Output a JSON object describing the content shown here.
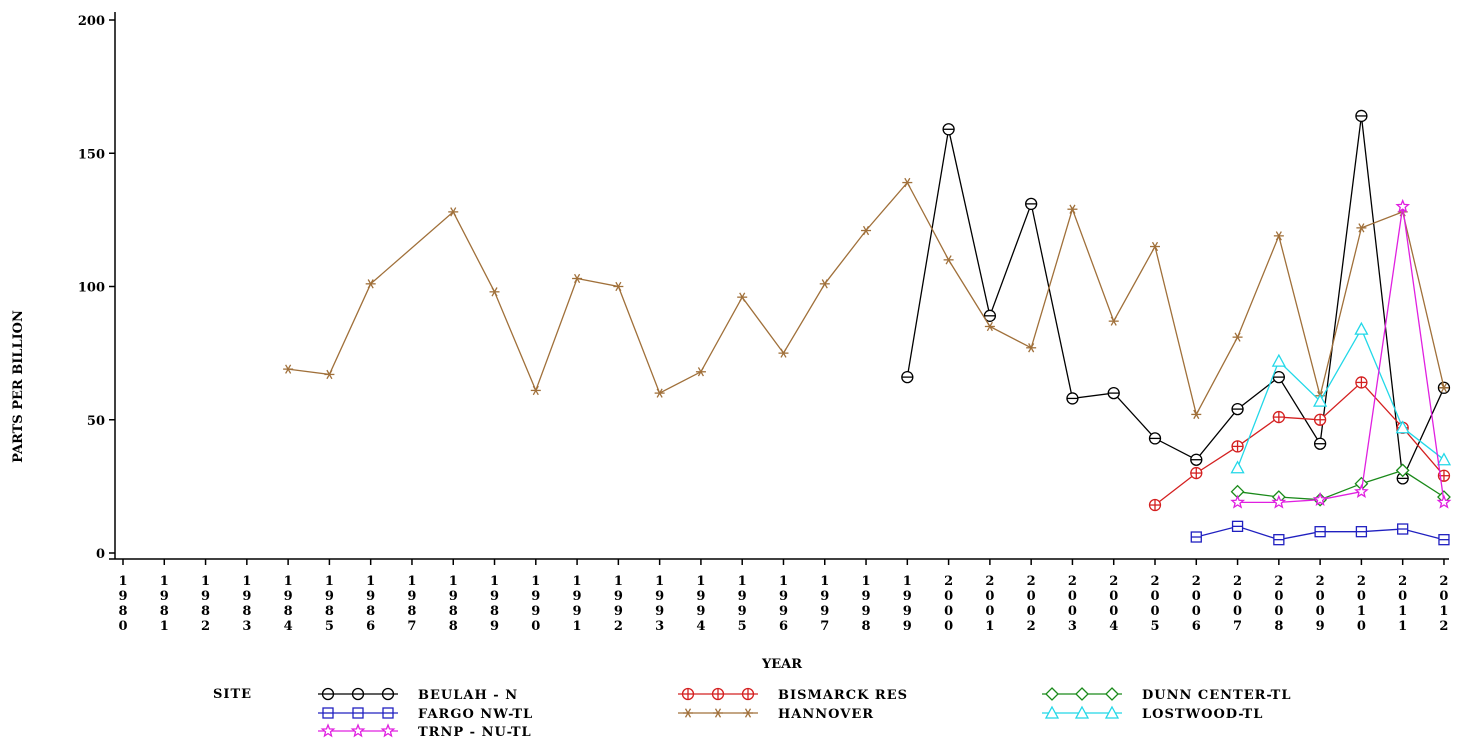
{
  "chart_data": {
    "type": "line",
    "xlabel": "YEAR",
    "ylabel": "PARTS PER BILLION",
    "ylim": [
      0,
      200
    ],
    "yticks": [
      "0",
      "50",
      "100",
      "150",
      "200"
    ],
    "x": [
      1980,
      1981,
      1982,
      1983,
      1984,
      1985,
      1986,
      1987,
      1988,
      1989,
      1990,
      1991,
      1992,
      1993,
      1994,
      1995,
      1996,
      1997,
      1998,
      1999,
      2000,
      2001,
      2002,
      2003,
      2004,
      2005,
      2006,
      2007,
      2008,
      2009,
      2010,
      2011,
      2012
    ],
    "xtick_labels": [
      "1980",
      "1981",
      "1982",
      "1983",
      "1984",
      "1985",
      "1986",
      "1987",
      "1988",
      "1989",
      "1990",
      "1991",
      "1992",
      "1993",
      "1994",
      "1995",
      "1996",
      "1997",
      "1998",
      "1999",
      "2000",
      "2001",
      "2002",
      "2003",
      "2004",
      "2005",
      "2006",
      "2007",
      "2008",
      "2009",
      "2010",
      "2011",
      "2012"
    ],
    "legend_title": "SITE",
    "legend_placement": "bottom",
    "series": [
      {
        "name": "BEULAH - N",
        "color": "#000000",
        "marker": "circle-dot",
        "points": [
          [
            1999,
            66
          ],
          [
            2000,
            159
          ],
          [
            2001,
            89
          ],
          [
            2002,
            131
          ],
          [
            2003,
            58
          ],
          [
            2004,
            60
          ],
          [
            2005,
            43
          ],
          [
            2006,
            35
          ],
          [
            2007,
            54
          ],
          [
            2008,
            66
          ],
          [
            2009,
            41
          ],
          [
            2010,
            164
          ],
          [
            2011,
            28
          ],
          [
            2012,
            62
          ]
        ]
      },
      {
        "name": "BISMARCK RES",
        "color": "#d42020",
        "marker": "circle-plus",
        "points": [
          [
            2005,
            18
          ],
          [
            2006,
            30
          ],
          [
            2007,
            40
          ],
          [
            2008,
            51
          ],
          [
            2009,
            50
          ],
          [
            2010,
            64
          ],
          [
            2011,
            47
          ],
          [
            2012,
            29
          ]
        ]
      },
      {
        "name": "DUNN CENTER-TL",
        "color": "#1a8a1a",
        "marker": "diamond",
        "points": [
          [
            2007,
            23
          ],
          [
            2008,
            21
          ],
          [
            2009,
            20
          ],
          [
            2010,
            26
          ],
          [
            2011,
            31
          ],
          [
            2012,
            21
          ]
        ]
      },
      {
        "name": "FARGO NW-TL",
        "color": "#2020c0",
        "marker": "square",
        "points": [
          [
            2006,
            6
          ],
          [
            2007,
            10
          ],
          [
            2008,
            5
          ],
          [
            2009,
            8
          ],
          [
            2010,
            8
          ],
          [
            2011,
            9
          ],
          [
            2012,
            5
          ]
        ]
      },
      {
        "name": "HANNOVER",
        "color": "#a0703a",
        "marker": "star",
        "points": [
          [
            1984,
            69
          ],
          [
            1985,
            67
          ],
          [
            1986,
            101
          ],
          [
            1988,
            128
          ],
          [
            1989,
            98
          ],
          [
            1990,
            61
          ],
          [
            1991,
            103
          ],
          [
            1992,
            100
          ],
          [
            1993,
            60
          ],
          [
            1994,
            68
          ],
          [
            1995,
            96
          ],
          [
            1996,
            75
          ],
          [
            1997,
            101
          ],
          [
            1998,
            121
          ],
          [
            1999,
            139
          ],
          [
            2000,
            110
          ],
          [
            2001,
            85
          ],
          [
            2002,
            77
          ],
          [
            2003,
            129
          ],
          [
            2004,
            87
          ],
          [
            2005,
            115
          ],
          [
            2006,
            52
          ],
          [
            2007,
            81
          ],
          [
            2008,
            119
          ],
          [
            2009,
            59
          ],
          [
            2010,
            122
          ],
          [
            2011,
            128
          ],
          [
            2012,
            62
          ]
        ]
      },
      {
        "name": "LOSTWOOD-TL",
        "color": "#22d8e8",
        "marker": "triangle",
        "points": [
          [
            2007,
            32
          ],
          [
            2008,
            72
          ],
          [
            2009,
            57
          ],
          [
            2010,
            84
          ],
          [
            2011,
            47
          ],
          [
            2012,
            35
          ]
        ]
      },
      {
        "name": "TRNP - NU-TL",
        "color": "#e020e0",
        "marker": "asterisk",
        "points": [
          [
            2007,
            19
          ],
          [
            2008,
            19
          ],
          [
            2009,
            20
          ],
          [
            2010,
            23
          ],
          [
            2011,
            130
          ],
          [
            2012,
            19
          ]
        ]
      }
    ]
  }
}
